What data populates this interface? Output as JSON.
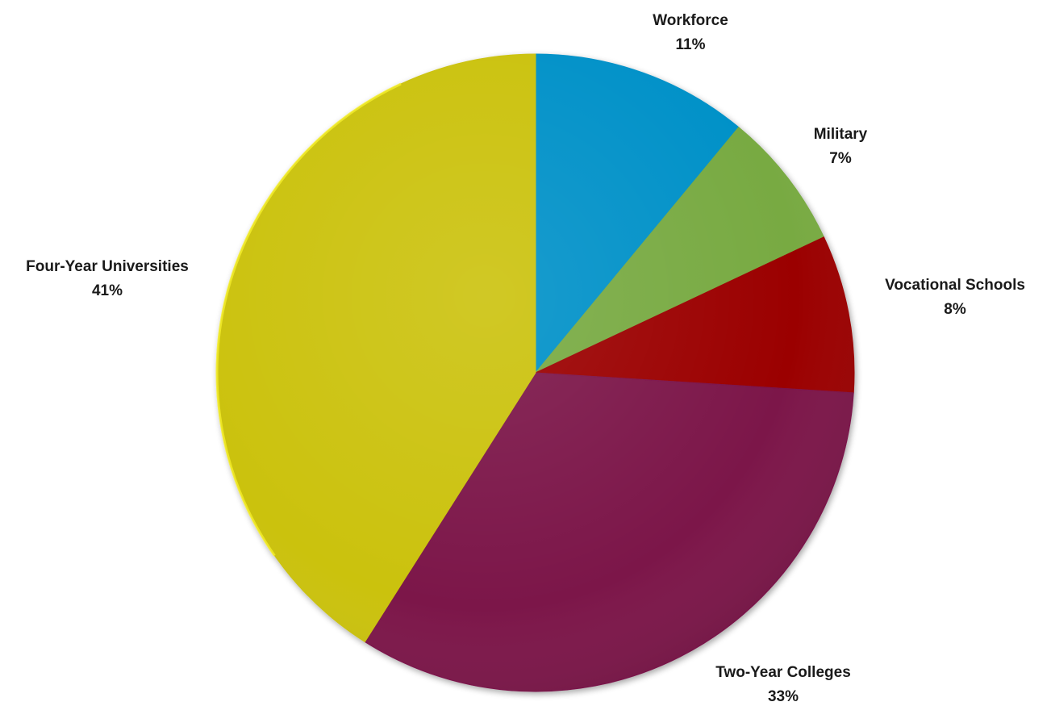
{
  "chart_data": {
    "type": "pie",
    "title": "",
    "start_angle_deg": 0,
    "direction": "clockwise",
    "slices": [
      {
        "label": "Workforce",
        "value": 11,
        "value_label": "11%",
        "color": "#0391c8"
      },
      {
        "label": "Military",
        "value": 7,
        "value_label": "7%",
        "color": "#78aa42"
      },
      {
        "label": "Vocational Schools",
        "value": 8,
        "value_label": "8%",
        "color": "#9b0000"
      },
      {
        "label": "Two-Year Colleges",
        "value": 33,
        "value_label": "33%",
        "color": "#7b1249"
      },
      {
        "label": "Four-Year Universities",
        "value": 41,
        "value_label": "41%",
        "color": "#cbc20c"
      }
    ],
    "data_labels": "outside",
    "legend": "none"
  }
}
